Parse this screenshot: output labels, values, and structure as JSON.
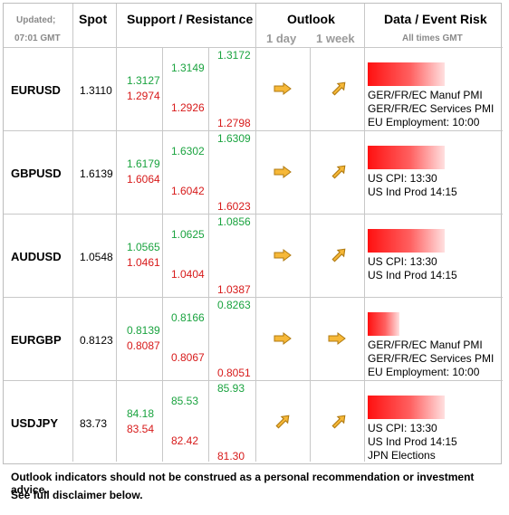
{
  "header": {
    "updated_label": "Updated;",
    "updated_time": "07:01 GMT",
    "spot": "Spot",
    "support_resistance": "Support / Resistance",
    "outlook": "Outlook",
    "outlook_1day": "1 day",
    "outlook_1week": "1 week",
    "data_event": "Data / Event Risk",
    "all_times": "All times GMT"
  },
  "rows": [
    {
      "pair": "EURUSD",
      "spot": "1.3110",
      "s1": "1.3127",
      "s2": "1.2974",
      "m1": "1.3149",
      "m2": "1.2926",
      "h1": "1.3172",
      "h2": "1.2798",
      "day": "right",
      "week": "up",
      "risk": 0.85,
      "events": [
        "GER/FR/EC Manuf PMI",
        "GER/FR/EC Services PMI",
        "EU Employment: 10:00"
      ]
    },
    {
      "pair": "GBPUSD",
      "spot": "1.6139",
      "s1": "1.6179",
      "s2": "1.6064",
      "m1": "1.6302",
      "m2": "1.6042",
      "h1": "1.6309",
      "h2": "1.6023",
      "day": "right",
      "week": "up",
      "risk": 0.85,
      "events": [
        "US CPI: 13:30",
        "US Ind Prod 14:15"
      ]
    },
    {
      "pair": "AUDUSD",
      "spot": "1.0548",
      "s1": "1.0565",
      "s2": "1.0461",
      "m1": "1.0625",
      "m2": "1.0404",
      "h1": "1.0856",
      "h2": "1.0387",
      "day": "right",
      "week": "up",
      "risk": 0.85,
      "events": [
        "US CPI: 13:30",
        "US Ind Prod 14:15"
      ]
    },
    {
      "pair": "EURGBP",
      "spot": "0.8123",
      "s1": "0.8139",
      "s2": "0.8087",
      "m1": "0.8166",
      "m2": "0.8067",
      "h1": "0.8263",
      "h2": "0.8051",
      "day": "right",
      "week": "right",
      "risk": 0.35,
      "events": [
        "GER/FR/EC Manuf PMI",
        "GER/FR/EC Services PMI",
        "EU Employment: 10:00"
      ]
    },
    {
      "pair": "USDJPY",
      "spot": "83.73",
      "s1": "84.18",
      "s2": "83.54",
      "m1": "85.53",
      "m2": "82.42",
      "h1": "85.93",
      "h2": "81.30",
      "day": "up",
      "week": "up",
      "risk": 0.85,
      "events": [
        "US CPI: 13:30",
        "US Ind Prod 14:15",
        "JPN Elections"
      ]
    }
  ],
  "footer": {
    "line1": "Outlook indicators should not be construed as a personal recommendation or investment advice.",
    "line2": "See full disclaimer below."
  },
  "colors": {
    "support": "#1aa33f",
    "resistance": "#d71a1a",
    "arrow": "#f4a21c"
  }
}
